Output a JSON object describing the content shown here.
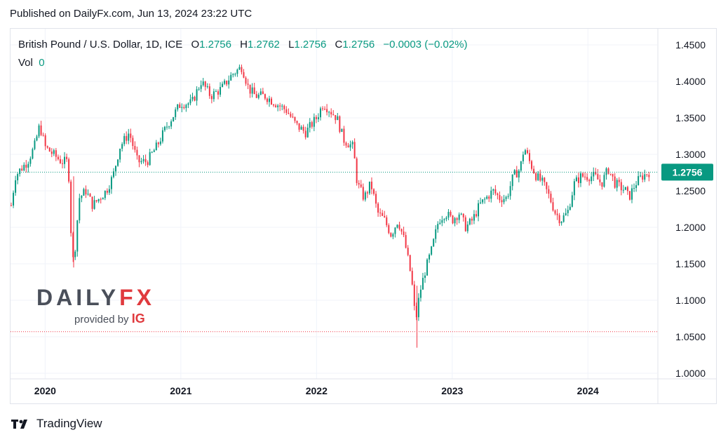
{
  "published": "Published on DailyFx.com, Jun 13, 2024 23:22 UTC",
  "legend": {
    "symbol": "British Pound / U.S. Dollar, 1D, ICE",
    "o_label": "O",
    "o_value": "1.2756",
    "h_label": "H",
    "h_value": "1.2762",
    "l_label": "L",
    "l_value": "1.2756",
    "c_label": "C",
    "c_value": "1.2756",
    "change": "−0.0003 (−0.02%)",
    "vol_label": "Vol",
    "vol_value": "0"
  },
  "logo": {
    "daily": "DAILY",
    "fx": "FX",
    "provided": "provided by",
    "ig": "IG"
  },
  "footer": {
    "brand": "TradingView"
  },
  "colors": {
    "up": "#089981",
    "down": "#f23645",
    "price_label_bg": "#089981",
    "last_line": "#089981",
    "low_line": "#f23645"
  },
  "chart_data": {
    "type": "candlestick",
    "title": "British Pound / U.S. Dollar, 1D, ICE",
    "ylim": [
      1.0,
      1.45
    ],
    "y_ticks": [
      "1.4500",
      "1.4000",
      "1.3500",
      "1.3000",
      "1.2500",
      "1.2000",
      "1.1500",
      "1.1000",
      "1.0500",
      "1.0000"
    ],
    "x_ticks": [
      "2020",
      "2021",
      "2022",
      "2023",
      "2024"
    ],
    "last_price": "1.2756",
    "last_price_value": 1.2756,
    "period_low_value": 1.057,
    "grid": true,
    "series": [
      {
        "t": 2019.75,
        "close": 1.23
      },
      {
        "t": 2019.78,
        "close": 1.27
      },
      {
        "t": 2019.82,
        "close": 1.28
      },
      {
        "t": 2019.87,
        "close": 1.29
      },
      {
        "t": 2019.92,
        "close": 1.31
      },
      {
        "t": 2019.96,
        "close": 1.34
      },
      {
        "t": 2020.0,
        "close": 1.31
      },
      {
        "t": 2020.06,
        "close": 1.3
      },
      {
        "t": 2020.12,
        "close": 1.29
      },
      {
        "t": 2020.17,
        "close": 1.29
      },
      {
        "t": 2020.2,
        "close": 1.15
      },
      {
        "t": 2020.22,
        "close": 1.17
      },
      {
        "t": 2020.25,
        "close": 1.24
      },
      {
        "t": 2020.3,
        "close": 1.25
      },
      {
        "t": 2020.35,
        "close": 1.23
      },
      {
        "t": 2020.4,
        "close": 1.24
      },
      {
        "t": 2020.45,
        "close": 1.25
      },
      {
        "t": 2020.5,
        "close": 1.27
      },
      {
        "t": 2020.55,
        "close": 1.31
      },
      {
        "t": 2020.62,
        "close": 1.33
      },
      {
        "t": 2020.68,
        "close": 1.29
      },
      {
        "t": 2020.75,
        "close": 1.29
      },
      {
        "t": 2020.82,
        "close": 1.31
      },
      {
        "t": 2020.9,
        "close": 1.34
      },
      {
        "t": 2021.0,
        "close": 1.37
      },
      {
        "t": 2021.08,
        "close": 1.37
      },
      {
        "t": 2021.15,
        "close": 1.4
      },
      {
        "t": 2021.22,
        "close": 1.38
      },
      {
        "t": 2021.3,
        "close": 1.39
      },
      {
        "t": 2021.38,
        "close": 1.41
      },
      {
        "t": 2021.45,
        "close": 1.42
      },
      {
        "t": 2021.5,
        "close": 1.39
      },
      {
        "t": 2021.55,
        "close": 1.38
      },
      {
        "t": 2021.62,
        "close": 1.38
      },
      {
        "t": 2021.7,
        "close": 1.37
      },
      {
        "t": 2021.78,
        "close": 1.36
      },
      {
        "t": 2021.85,
        "close": 1.34
      },
      {
        "t": 2021.92,
        "close": 1.33
      },
      {
        "t": 2022.0,
        "close": 1.35
      },
      {
        "t": 2022.05,
        "close": 1.37
      },
      {
        "t": 2022.1,
        "close": 1.36
      },
      {
        "t": 2022.15,
        "close": 1.35
      },
      {
        "t": 2022.2,
        "close": 1.32
      },
      {
        "t": 2022.27,
        "close": 1.31
      },
      {
        "t": 2022.3,
        "close": 1.26
      },
      {
        "t": 2022.35,
        "close": 1.24
      },
      {
        "t": 2022.4,
        "close": 1.26
      },
      {
        "t": 2022.45,
        "close": 1.22
      },
      {
        "t": 2022.5,
        "close": 1.21
      },
      {
        "t": 2022.55,
        "close": 1.19
      },
      {
        "t": 2022.6,
        "close": 1.21
      },
      {
        "t": 2022.65,
        "close": 1.18
      },
      {
        "t": 2022.7,
        "close": 1.13
      },
      {
        "t": 2022.73,
        "close": 1.07
      },
      {
        "t": 2022.76,
        "close": 1.11
      },
      {
        "t": 2022.8,
        "close": 1.14
      },
      {
        "t": 2022.85,
        "close": 1.17
      },
      {
        "t": 2022.9,
        "close": 1.21
      },
      {
        "t": 2022.95,
        "close": 1.22
      },
      {
        "t": 2023.0,
        "close": 1.21
      },
      {
        "t": 2023.05,
        "close": 1.22
      },
      {
        "t": 2023.1,
        "close": 1.2
      },
      {
        "t": 2023.15,
        "close": 1.21
      },
      {
        "t": 2023.2,
        "close": 1.23
      },
      {
        "t": 2023.25,
        "close": 1.24
      },
      {
        "t": 2023.3,
        "close": 1.25
      },
      {
        "t": 2023.35,
        "close": 1.24
      },
      {
        "t": 2023.4,
        "close": 1.24
      },
      {
        "t": 2023.45,
        "close": 1.27
      },
      {
        "t": 2023.5,
        "close": 1.28
      },
      {
        "t": 2023.53,
        "close": 1.31
      },
      {
        "t": 2023.57,
        "close": 1.29
      },
      {
        "t": 2023.62,
        "close": 1.27
      },
      {
        "t": 2023.67,
        "close": 1.26
      },
      {
        "t": 2023.72,
        "close": 1.24
      },
      {
        "t": 2023.76,
        "close": 1.22
      },
      {
        "t": 2023.8,
        "close": 1.21
      },
      {
        "t": 2023.85,
        "close": 1.22
      },
      {
        "t": 2023.9,
        "close": 1.26
      },
      {
        "t": 2023.95,
        "close": 1.27
      },
      {
        "t": 2024.0,
        "close": 1.27
      },
      {
        "t": 2024.05,
        "close": 1.27
      },
      {
        "t": 2024.1,
        "close": 1.26
      },
      {
        "t": 2024.15,
        "close": 1.28
      },
      {
        "t": 2024.2,
        "close": 1.26
      },
      {
        "t": 2024.28,
        "close": 1.25
      },
      {
        "t": 2024.3,
        "close": 1.24
      },
      {
        "t": 2024.35,
        "close": 1.26
      },
      {
        "t": 2024.4,
        "close": 1.27
      },
      {
        "t": 2024.45,
        "close": 1.2756
      }
    ]
  }
}
